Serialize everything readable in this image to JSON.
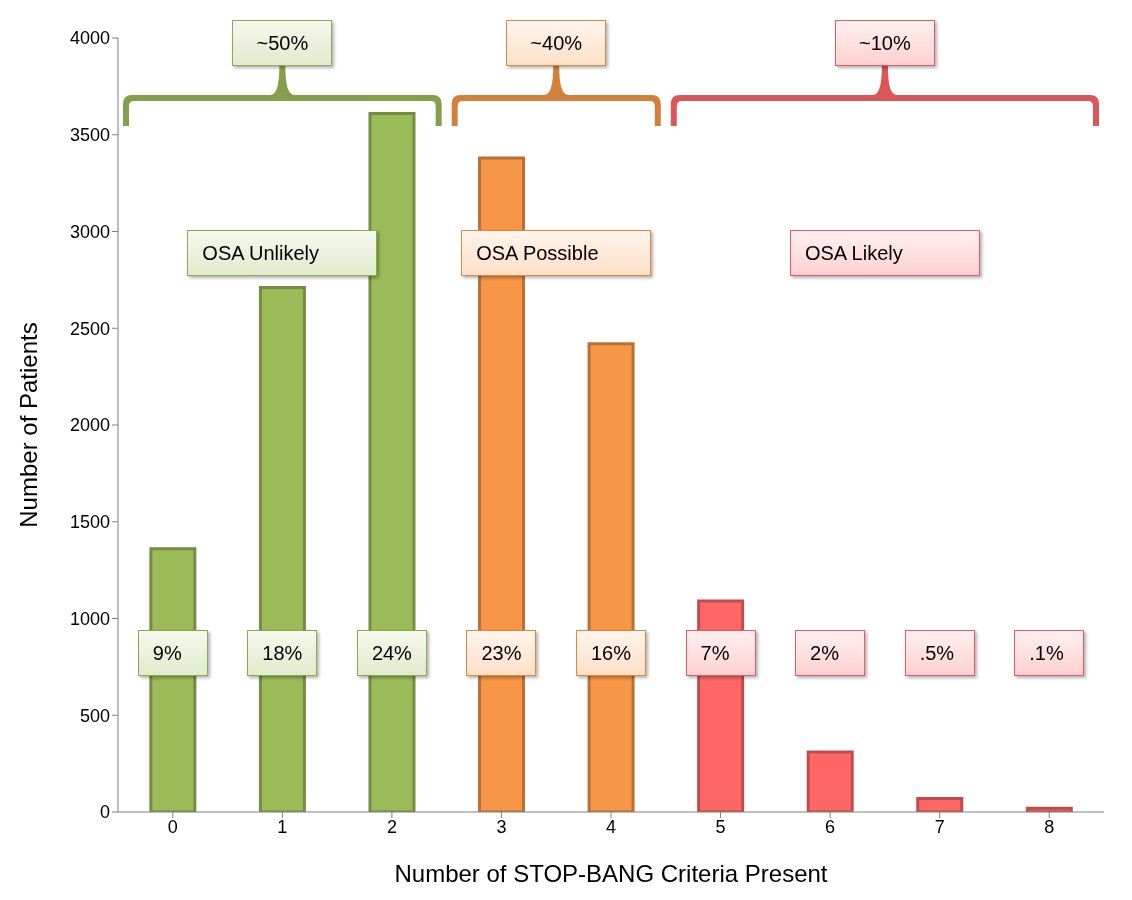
{
  "chart_data": {
    "type": "bar",
    "categories": [
      "0",
      "1",
      "2",
      "3",
      "4",
      "5",
      "6",
      "7",
      "8"
    ],
    "values": [
      1360,
      2710,
      3610,
      3380,
      2420,
      1090,
      310,
      70,
      20
    ],
    "colors": [
      "#9bbb59",
      "#9bbb59",
      "#9bbb59",
      "#f79646",
      "#f79646",
      "#ff6666",
      "#ff6666",
      "#ff6666",
      "#ff6666"
    ],
    "xlabel": "Number of STOP-BANG Criteria Present",
    "ylabel": "Number of Patients",
    "ylim": [
      0,
      4000
    ],
    "yticks": [
      0,
      500,
      1000,
      1500,
      2000,
      2500,
      3000,
      3500,
      4000
    ],
    "grid": false,
    "legend": false,
    "annotations": [
      "~50%",
      "~40%",
      "~10%",
      "OSA Unlikely",
      "OSA Possible",
      "OSA Likely",
      "9%",
      "18%",
      "24%",
      "23%",
      "16%",
      "7%",
      "2%",
      ".5%",
      ".1%"
    ]
  }
}
